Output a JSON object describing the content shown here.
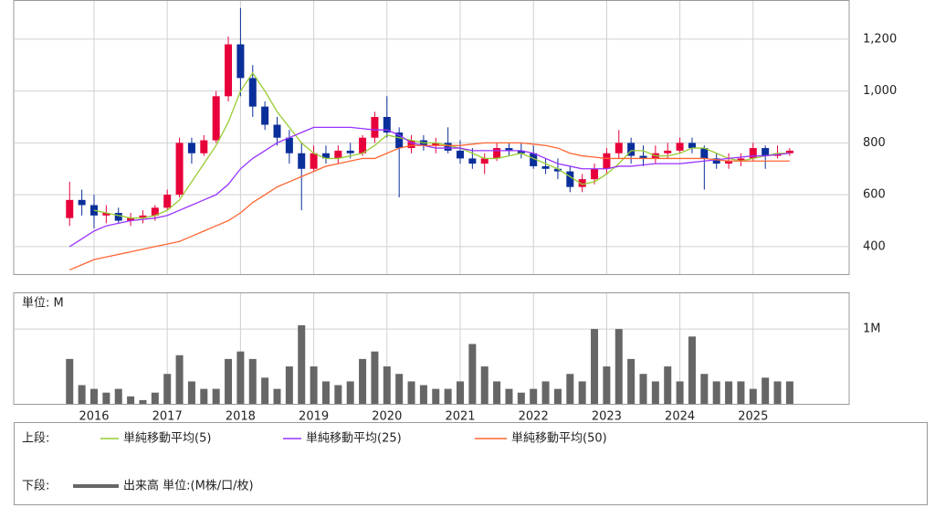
{
  "chart_data": [
    {
      "type": "candlestick",
      "categories": [
        null,
        null,
        "2016",
        null,
        null,
        null,
        null,
        null,
        "2017",
        null,
        null,
        null,
        null,
        null,
        "2018",
        null,
        null,
        null,
        null,
        null,
        "2019",
        null,
        null,
        null,
        null,
        null,
        "2020",
        null,
        null,
        null,
        null,
        null,
        "2021",
        null,
        null,
        null,
        null,
        null,
        "2022",
        null,
        null,
        null,
        null,
        null,
        "2023",
        null,
        null,
        null,
        null,
        null,
        "2024",
        null,
        null,
        null,
        null,
        null,
        "2025",
        null,
        null,
        null
      ],
      "open": [
        510,
        580,
        560,
        520,
        530,
        500,
        510,
        520,
        550,
        600,
        800,
        760,
        810,
        980,
        1180,
        1050,
        940,
        870,
        820,
        760,
        700,
        760,
        740,
        770,
        760,
        820,
        900,
        840,
        780,
        810,
        790,
        800,
        770,
        740,
        720,
        740,
        780,
        770,
        760,
        710,
        700,
        690,
        630,
        660,
        700,
        760,
        800,
        750,
        740,
        760,
        770,
        800,
        780,
        740,
        720,
        730,
        740,
        780,
        750,
        760
      ],
      "high": [
        650,
        620,
        600,
        560,
        550,
        530,
        540,
        560,
        620,
        820,
        820,
        830,
        1000,
        1210,
        1320,
        1100,
        960,
        900,
        850,
        800,
        790,
        790,
        790,
        800,
        830,
        920,
        980,
        860,
        830,
        830,
        820,
        860,
        810,
        780,
        760,
        800,
        800,
        800,
        790,
        740,
        740,
        710,
        680,
        720,
        780,
        850,
        820,
        790,
        790,
        800,
        820,
        820,
        790,
        760,
        760,
        760,
        800,
        790,
        790,
        780
      ],
      "low": [
        480,
        520,
        470,
        490,
        490,
        480,
        490,
        500,
        540,
        590,
        720,
        750,
        800,
        960,
        980,
        900,
        850,
        790,
        720,
        540,
        690,
        720,
        720,
        740,
        750,
        800,
        820,
        590,
        760,
        770,
        760,
        760,
        720,
        700,
        680,
        730,
        750,
        740,
        700,
        680,
        660,
        610,
        610,
        640,
        680,
        740,
        720,
        710,
        720,
        740,
        760,
        760,
        620,
        700,
        700,
        710,
        730,
        700,
        740,
        750
      ],
      "close": [
        580,
        560,
        520,
        530,
        500,
        510,
        520,
        550,
        600,
        800,
        760,
        810,
        980,
        1180,
        1050,
        940,
        870,
        820,
        760,
        700,
        760,
        740,
        770,
        760,
        820,
        900,
        840,
        780,
        810,
        790,
        800,
        770,
        740,
        720,
        740,
        780,
        770,
        760,
        710,
        700,
        690,
        630,
        660,
        700,
        760,
        800,
        750,
        740,
        760,
        770,
        800,
        780,
        740,
        720,
        730,
        740,
        780,
        750,
        760,
        770
      ],
      "up_color": "#e8003a",
      "down_color": "#0a2f9a",
      "series": [
        {
          "name": "単純移動平均(5)",
          "color": "#99cc33",
          "values": [
            null,
            null,
            540,
            530,
            520,
            510,
            510,
            520,
            540,
            580,
            650,
            720,
            790,
            880,
            1000,
            1070,
            1000,
            920,
            860,
            800,
            760,
            740,
            740,
            750,
            760,
            790,
            830,
            820,
            810,
            800,
            800,
            790,
            780,
            760,
            740,
            740,
            750,
            760,
            740,
            720,
            700,
            670,
            640,
            650,
            680,
            720,
            770,
            770,
            750,
            750,
            760,
            780,
            780,
            760,
            740,
            730,
            740,
            750,
            760,
            760
          ]
        },
        {
          "name": "単純移動平均(25)",
          "color": "#9933ff",
          "values": [
            400,
            430,
            460,
            480,
            490,
            500,
            505,
            510,
            520,
            540,
            560,
            580,
            600,
            640,
            700,
            740,
            770,
            800,
            820,
            840,
            860,
            860,
            860,
            860,
            855,
            850,
            850,
            830,
            800,
            790,
            780,
            780,
            780,
            770,
            770,
            770,
            770,
            770,
            760,
            740,
            720,
            710,
            700,
            700,
            700,
            710,
            710,
            715,
            720,
            720,
            720,
            725,
            730,
            735,
            740,
            745,
            750,
            750,
            755,
            760
          ]
        },
        {
          "name": "単純移動平均(50)",
          "color": "#ff6633",
          "values": [
            310,
            330,
            350,
            360,
            370,
            380,
            390,
            400,
            410,
            420,
            440,
            460,
            480,
            500,
            530,
            570,
            600,
            630,
            650,
            670,
            690,
            710,
            720,
            730,
            740,
            740,
            760,
            780,
            790,
            790,
            790,
            790,
            790,
            795,
            800,
            800,
            800,
            800,
            795,
            790,
            780,
            760,
            750,
            745,
            740,
            740,
            740,
            740,
            740,
            740,
            740,
            740,
            740,
            735,
            730,
            730,
            730,
            730,
            730,
            730
          ]
        }
      ],
      "ylim": [
        294,
        1351
      ],
      "yticks": [
        400,
        600,
        800,
        {
          "value": 1000,
          "label": "1,000"
        },
        {
          "value": 1200,
          "label": "1,200"
        }
      ],
      "grid": true
    },
    {
      "type": "bar",
      "unit_label": "単位: M",
      "series": [
        {
          "name": "出来高 単位:(M株/口/枚)",
          "color": "#666666",
          "values": [
            0.6,
            0.25,
            0.2,
            0.15,
            0.2,
            0.1,
            0.05,
            0.15,
            0.4,
            0.65,
            0.3,
            0.2,
            0.2,
            0.6,
            0.7,
            0.6,
            0.35,
            0.2,
            0.5,
            1.05,
            0.5,
            0.3,
            0.25,
            0.3,
            0.6,
            0.7,
            0.5,
            0.4,
            0.3,
            0.25,
            0.2,
            0.2,
            0.3,
            0.8,
            0.5,
            0.3,
            0.2,
            0.15,
            0.2,
            0.3,
            0.2,
            0.4,
            0.3,
            1.0,
            0.5,
            1.0,
            0.6,
            0.4,
            0.3,
            0.5,
            0.3,
            0.9,
            0.4,
            0.3,
            0.3,
            0.3,
            0.2,
            0.35,
            0.3,
            0.3
          ]
        }
      ],
      "ylim": [
        0,
        1.49
      ],
      "yticks": [
        {
          "value": 1,
          "label": "1M"
        }
      ],
      "grid": true
    }
  ],
  "legend": {
    "upper": "上段:",
    "lower": "下段:"
  }
}
